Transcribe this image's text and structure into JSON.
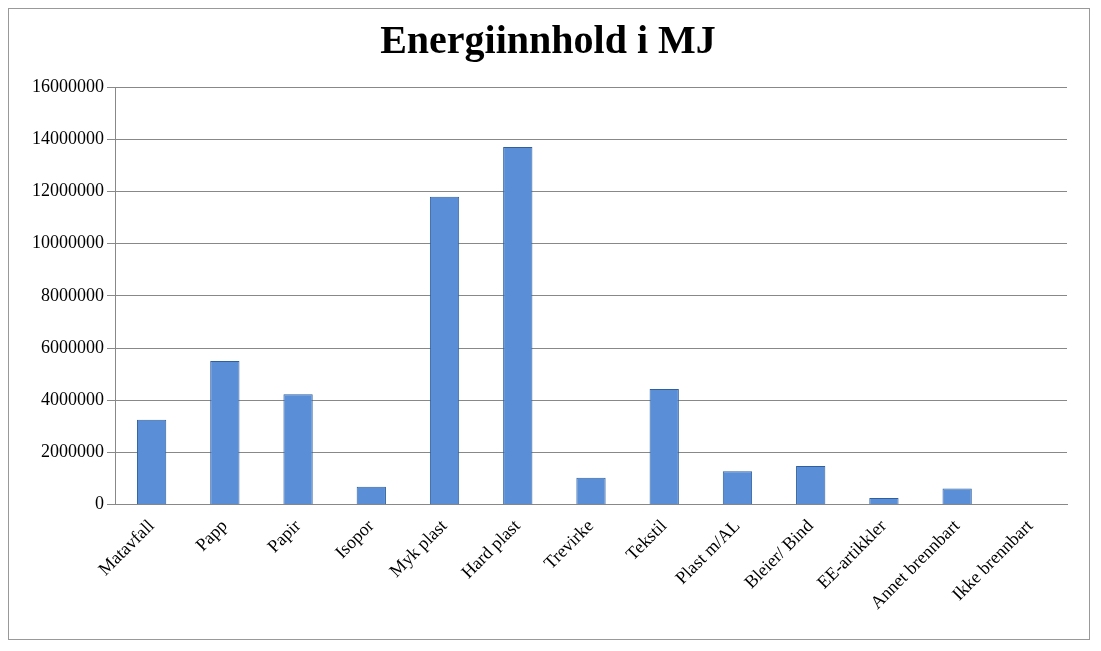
{
  "chart_data": {
    "type": "bar",
    "title": "Energiinnhold i MJ",
    "categories": [
      "Matavfall",
      "Papp",
      "Papir",
      "Isopor",
      "Myk plast",
      "Hard plast",
      "Trevirke",
      "Tekstil",
      "Plast m/AL",
      "Bleier/ Bind",
      "EE-artikkler",
      "Annet brennbart",
      "Ikke brennbart"
    ],
    "values": [
      3250000,
      5500000,
      4230000,
      690000,
      11800000,
      13700000,
      1030000,
      4430000,
      1280000,
      1480000,
      260000,
      620000,
      0
    ],
    "color": "#5a8fd8",
    "ylim": [
      0,
      16000000
    ],
    "yticks": [
      0,
      2000000,
      4000000,
      6000000,
      8000000,
      10000000,
      12000000,
      14000000,
      16000000
    ],
    "grid": "y",
    "legend": false
  }
}
